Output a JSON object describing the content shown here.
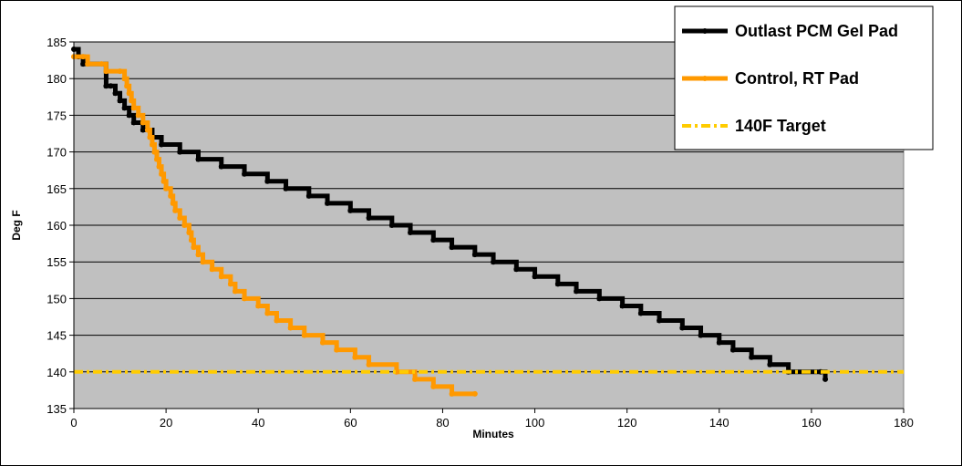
{
  "chart_data": {
    "type": "line",
    "title": "",
    "xlabel": "Minutes",
    "ylabel": "Deg F",
    "xlim": [
      0,
      180
    ],
    "ylim": [
      135,
      185
    ],
    "xticks": [
      0,
      20,
      40,
      60,
      80,
      100,
      120,
      140,
      160,
      180
    ],
    "yticks": [
      135,
      140,
      145,
      150,
      155,
      160,
      165,
      170,
      175,
      180,
      185
    ],
    "grid": "horizontal",
    "plot_background": "#c0c0c0",
    "legend_position": "top-right",
    "series": [
      {
        "name": "Outlast PCM Gel Pad",
        "color": "#000000",
        "step": true,
        "points": [
          [
            0,
            184
          ],
          [
            1,
            183
          ],
          [
            2,
            182
          ],
          [
            7,
            179
          ],
          [
            8,
            179
          ],
          [
            9,
            178
          ],
          [
            10,
            177
          ],
          [
            11,
            176
          ],
          [
            12,
            175
          ],
          [
            13,
            174
          ],
          [
            15,
            173
          ],
          [
            17,
            172
          ],
          [
            19,
            171
          ],
          [
            23,
            170
          ],
          [
            27,
            169
          ],
          [
            32,
            168
          ],
          [
            37,
            167
          ],
          [
            42,
            166
          ],
          [
            46,
            165
          ],
          [
            51,
            164
          ],
          [
            55,
            163
          ],
          [
            60,
            162
          ],
          [
            64,
            161
          ],
          [
            69,
            160
          ],
          [
            73,
            159
          ],
          [
            78,
            158
          ],
          [
            82,
            157
          ],
          [
            87,
            156
          ],
          [
            91,
            155
          ],
          [
            96,
            154
          ],
          [
            100,
            153
          ],
          [
            105,
            152
          ],
          [
            109,
            151
          ],
          [
            114,
            150
          ],
          [
            119,
            149
          ],
          [
            123,
            148
          ],
          [
            127,
            147
          ],
          [
            132,
            146
          ],
          [
            136,
            145
          ],
          [
            140,
            144
          ],
          [
            143,
            143
          ],
          [
            147,
            142
          ],
          [
            151,
            141
          ],
          [
            155,
            140
          ],
          [
            162,
            140
          ],
          [
            163,
            139
          ]
        ]
      },
      {
        "name": "Control, RT Pad",
        "color": "#ff9900",
        "step": true,
        "points": [
          [
            0,
            183
          ],
          [
            2,
            183
          ],
          [
            3,
            182
          ],
          [
            6,
            182
          ],
          [
            7,
            181
          ],
          [
            10,
            181
          ],
          [
            11,
            180
          ],
          [
            11.5,
            179
          ],
          [
            12,
            178
          ],
          [
            12.5,
            177
          ],
          [
            13,
            176
          ],
          [
            14,
            175
          ],
          [
            15,
            174
          ],
          [
            16,
            173
          ],
          [
            16.5,
            172
          ],
          [
            17,
            171
          ],
          [
            17.5,
            170
          ],
          [
            18,
            169
          ],
          [
            18.5,
            168
          ],
          [
            19,
            167
          ],
          [
            19.5,
            166
          ],
          [
            20,
            165
          ],
          [
            21,
            164
          ],
          [
            21.5,
            163
          ],
          [
            22,
            162
          ],
          [
            23,
            161
          ],
          [
            24,
            160
          ],
          [
            25,
            159
          ],
          [
            25.5,
            158
          ],
          [
            26,
            157
          ],
          [
            27,
            156
          ],
          [
            28,
            155
          ],
          [
            30,
            154
          ],
          [
            32,
            153
          ],
          [
            34,
            152
          ],
          [
            35,
            151
          ],
          [
            37,
            150
          ],
          [
            40,
            149
          ],
          [
            42,
            148
          ],
          [
            44,
            147
          ],
          [
            47,
            146
          ],
          [
            50,
            145
          ],
          [
            54,
            144
          ],
          [
            57,
            143
          ],
          [
            61,
            142
          ],
          [
            64,
            141
          ],
          [
            70,
            140
          ],
          [
            74,
            139
          ],
          [
            78,
            138
          ],
          [
            82,
            137
          ],
          [
            87,
            137
          ]
        ]
      },
      {
        "name": "140F Target",
        "color": "#ffcc00",
        "step": false,
        "dashed": true,
        "points": [
          [
            0,
            140
          ],
          [
            180,
            140
          ]
        ]
      }
    ]
  }
}
